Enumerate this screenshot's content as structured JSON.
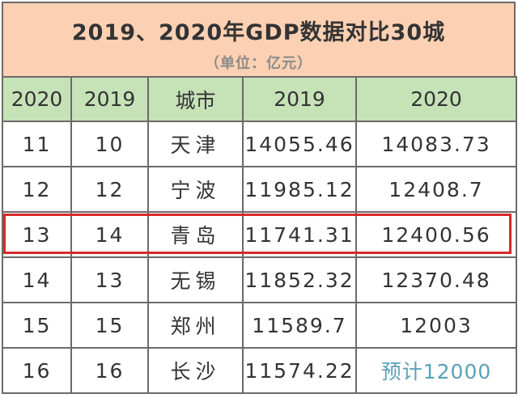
{
  "title": "2019、2020年GDP数据对比30城",
  "subtitle": "（单位：亿元）",
  "headers": [
    "2020",
    "2019",
    "城市",
    "2019",
    "2020"
  ],
  "rows": [
    {
      "rank2020": "11",
      "rank2019": "10",
      "city": "天津",
      "gdp2019": "14055.46",
      "gdp2020": "14083.73"
    },
    {
      "rank2020": "12",
      "rank2019": "12",
      "city": "宁波",
      "gdp2019": "11985.12",
      "gdp2020": "12408.7"
    },
    {
      "rank2020": "13",
      "rank2019": "14",
      "city": "青岛",
      "gdp2019": "11741.31",
      "gdp2020": "12400.56"
    },
    {
      "rank2020": "14",
      "rank2019": "13",
      "city": "无锡",
      "gdp2019": "11852.32",
      "gdp2020": "12370.48"
    },
    {
      "rank2020": "15",
      "rank2019": "15",
      "city": "郑州",
      "gdp2019": "11589.7",
      "gdp2020": "12003"
    },
    {
      "rank2020": "16",
      "rank2019": "16",
      "city": "长沙",
      "gdp2019": "11574.22",
      "gdp2020": "预计12000"
    }
  ],
  "colors": {
    "title_band": "#fbd0b3",
    "header_band": "#c6e2b7",
    "highlight_border": "#d92a2a",
    "forecast_text": "#5aa2b9"
  }
}
